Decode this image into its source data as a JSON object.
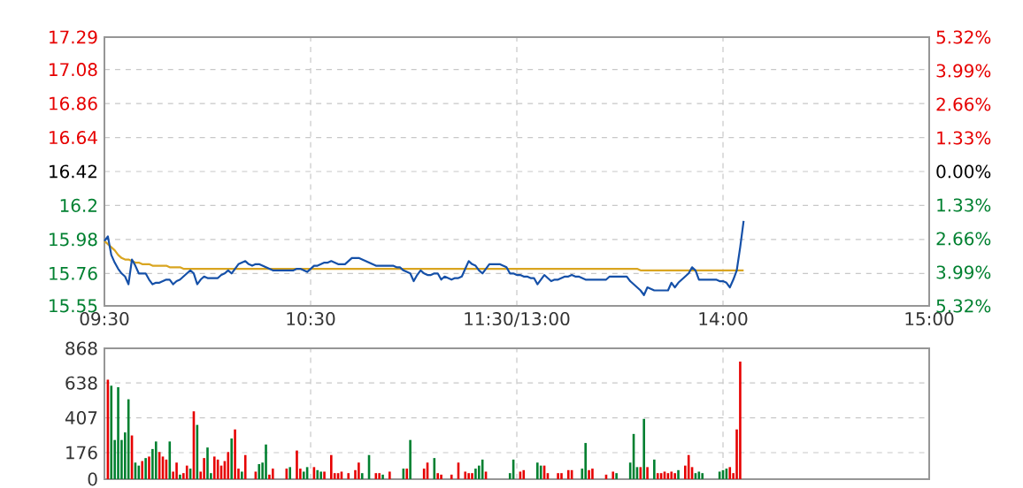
{
  "chart_data": [
    {
      "type": "line",
      "categories": [
        "09:30",
        null,
        null,
        null,
        null,
        null,
        null,
        null,
        null,
        null,
        null,
        null,
        null,
        null,
        null,
        null,
        null,
        null,
        null,
        null,
        null,
        null,
        null,
        null,
        null,
        null,
        null,
        null,
        null,
        null,
        null,
        null,
        null,
        null,
        null,
        null,
        null,
        null,
        null,
        null,
        null,
        null,
        null,
        null,
        null,
        null,
        null,
        null,
        null,
        null,
        null,
        null,
        null,
        null,
        null,
        null,
        null,
        null,
        null,
        null,
        "10:30",
        null,
        null,
        null,
        null,
        null,
        null,
        null,
        null,
        null,
        null,
        null,
        null,
        null,
        null,
        null,
        null,
        null,
        null,
        null,
        null,
        null,
        null,
        null,
        null,
        null,
        null,
        null,
        null,
        null,
        null,
        null,
        null,
        null,
        null,
        null,
        null,
        null,
        null,
        null,
        null,
        null,
        null,
        null,
        null,
        null,
        null,
        null,
        null,
        null,
        null,
        null,
        null,
        null,
        null,
        null,
        null,
        null,
        null,
        null,
        "11:30/13:00",
        null,
        null,
        null,
        null,
        null,
        null,
        null,
        null,
        null,
        null,
        null,
        null,
        null,
        null,
        null,
        null,
        null,
        null,
        null,
        null,
        null,
        null,
        null,
        null,
        null,
        null,
        null,
        null,
        null,
        null,
        null,
        null,
        null,
        null,
        null,
        null,
        null,
        null,
        null,
        null,
        null,
        null,
        null,
        null,
        null,
        null,
        null,
        null,
        null,
        null,
        null,
        null,
        null,
        null,
        null,
        null,
        null,
        null,
        null,
        "14:00",
        null,
        null,
        null,
        null,
        null,
        null,
        null,
        null,
        null,
        null,
        null,
        null,
        null,
        null,
        null,
        null,
        null,
        null,
        null,
        null,
        null,
        null,
        null,
        null,
        null,
        null,
        null,
        null,
        null,
        null,
        null,
        null,
        null,
        null,
        null,
        null,
        null,
        null,
        null,
        null,
        null,
        null,
        null,
        null,
        null,
        null,
        null,
        null,
        null,
        null,
        null,
        null,
        null,
        null,
        null,
        null,
        null,
        null,
        null,
        "15:00"
      ],
      "ylim": [
        15.55,
        17.29
      ],
      "yticks": [
        15.55,
        15.76,
        15.98,
        16.2,
        16.42,
        16.64,
        16.86,
        17.08,
        17.29
      ],
      "y2lim": [
        -5.32,
        5.32
      ],
      "y2ticks": [
        {
          "value": -5.32,
          "label": "5.32%"
        },
        {
          "value": -3.99,
          "label": "3.99%"
        },
        {
          "value": -2.66,
          "label": "2.66%"
        },
        {
          "value": -1.33,
          "label": "1.33%"
        },
        {
          "value": 0,
          "label": "0.00%"
        },
        {
          "value": 1.33,
          "label": "1.33%"
        },
        {
          "value": 2.66,
          "label": "2.66%"
        },
        {
          "value": 3.99,
          "label": "3.99%"
        },
        {
          "value": 5.32,
          "label": "5.32%"
        }
      ],
      "grid": true,
      "series": [
        {
          "color": "#d9a520",
          "values": [
            15.97,
            15.95,
            15.93,
            15.91,
            15.88,
            15.86,
            15.85,
            15.85,
            15.84,
            15.83,
            15.83,
            15.82,
            15.82,
            15.82,
            15.81,
            15.81,
            15.81,
            15.81,
            15.81,
            15.8,
            15.8,
            15.8,
            15.8,
            15.79,
            15.79,
            15.79,
            15.79,
            15.79,
            15.79,
            15.79,
            15.79,
            15.79,
            15.79,
            15.79,
            15.79,
            15.79,
            15.79,
            15.79,
            15.79,
            15.79,
            15.79,
            15.79,
            15.79,
            15.79,
            15.79,
            15.79,
            15.79,
            15.79,
            15.79,
            15.79,
            15.79,
            15.79,
            15.79,
            15.79,
            15.79,
            15.79,
            15.79,
            15.79,
            15.79,
            15.79,
            15.79,
            15.79,
            15.79,
            15.79,
            15.79,
            15.79,
            15.79,
            15.79,
            15.79,
            15.79,
            15.79,
            15.79,
            15.79,
            15.79,
            15.79,
            15.79,
            15.79,
            15.79,
            15.79,
            15.79,
            15.79,
            15.79,
            15.79,
            15.79,
            15.79,
            15.79,
            15.79,
            15.79,
            15.79,
            15.79,
            15.79,
            15.79,
            15.79,
            15.79,
            15.79,
            15.79,
            15.79,
            15.79,
            15.79,
            15.79,
            15.79,
            15.79,
            15.79,
            15.79,
            15.79,
            15.79,
            15.79,
            15.79,
            15.79,
            15.79,
            15.79,
            15.79,
            15.79,
            15.79,
            15.79,
            15.79,
            15.79,
            15.79,
            15.79,
            15.79,
            15.79,
            15.79,
            15.79,
            15.79,
            15.79,
            15.79,
            15.79,
            15.79,
            15.79,
            15.79,
            15.79,
            15.79,
            15.79,
            15.79,
            15.79,
            15.79,
            15.79,
            15.79,
            15.79,
            15.79,
            15.79,
            15.79,
            15.79,
            15.79,
            15.79,
            15.79,
            15.79,
            15.79,
            15.79,
            15.79,
            15.79,
            15.79,
            15.79,
            15.79,
            15.79,
            15.79,
            15.78,
            15.78,
            15.78,
            15.78,
            15.78,
            15.78,
            15.78,
            15.78,
            15.78,
            15.78,
            15.78,
            15.78,
            15.78,
            15.78,
            15.78,
            15.78,
            15.78,
            15.78,
            15.78,
            15.78,
            15.78,
            15.78,
            15.78,
            15.78,
            15.78,
            15.78,
            15.78,
            15.78,
            15.78,
            15.78,
            15.78,
            null,
            null,
            null,
            null,
            null,
            null,
            null,
            null,
            null,
            null,
            null,
            null,
            null,
            null,
            null,
            null,
            null,
            null,
            null,
            null,
            null,
            null,
            null,
            null,
            null,
            null,
            null,
            null,
            null,
            null,
            null,
            null,
            null,
            null,
            null,
            null,
            null,
            null,
            null,
            null,
            null,
            null,
            null,
            null,
            null,
            null,
            null,
            null,
            null,
            null,
            null,
            null,
            null,
            null
          ]
        },
        {
          "color": "#1550a8",
          "values": [
            15.97,
            16.0,
            15.88,
            15.83,
            15.79,
            15.76,
            15.74,
            15.69,
            15.85,
            15.81,
            15.76,
            15.76,
            15.76,
            15.72,
            15.69,
            15.7,
            15.7,
            15.71,
            15.72,
            15.72,
            15.69,
            15.71,
            15.72,
            15.74,
            15.76,
            15.78,
            15.76,
            15.69,
            15.72,
            15.74,
            15.73,
            15.73,
            15.73,
            15.73,
            15.75,
            15.76,
            15.78,
            15.76,
            15.79,
            15.82,
            15.83,
            15.84,
            15.82,
            15.81,
            15.82,
            15.82,
            15.81,
            15.8,
            15.79,
            15.78,
            15.78,
            15.78,
            15.78,
            15.78,
            15.78,
            15.78,
            15.79,
            15.79,
            15.78,
            15.77,
            15.79,
            15.81,
            15.81,
            15.82,
            15.83,
            15.83,
            15.84,
            15.83,
            15.82,
            15.82,
            15.82,
            15.84,
            15.86,
            15.86,
            15.86,
            15.85,
            15.84,
            15.83,
            15.82,
            15.81,
            15.81,
            15.81,
            15.81,
            15.81,
            15.81,
            15.8,
            15.8,
            15.78,
            15.77,
            15.76,
            15.71,
            15.75,
            15.78,
            15.76,
            15.75,
            15.75,
            15.76,
            15.76,
            15.72,
            15.74,
            15.73,
            15.72,
            15.73,
            15.73,
            15.74,
            15.79,
            15.84,
            15.82,
            15.81,
            15.78,
            15.76,
            15.79,
            15.82,
            15.82,
            15.82,
            15.82,
            15.81,
            15.8,
            15.76,
            15.76,
            15.75,
            15.75,
            15.74,
            15.74,
            15.73,
            15.73,
            15.69,
            15.72,
            15.75,
            15.73,
            15.71,
            15.72,
            15.72,
            15.73,
            15.74,
            15.74,
            15.75,
            15.74,
            15.74,
            15.73,
            15.72,
            15.72,
            15.72,
            15.72,
            15.72,
            15.72,
            15.72,
            15.74,
            15.74,
            15.74,
            15.74,
            15.74,
            15.74,
            15.71,
            15.69,
            15.67,
            15.65,
            15.62,
            15.67,
            15.66,
            15.65,
            15.65,
            15.65,
            15.65,
            15.65,
            15.7,
            15.67,
            15.7,
            15.72,
            15.74,
            15.76,
            15.8,
            15.78,
            15.72,
            15.72,
            15.72,
            15.72,
            15.72,
            15.72,
            15.71,
            15.71,
            15.7,
            15.67,
            15.72,
            15.78,
            15.93,
            16.1,
            null,
            null,
            null,
            null,
            null,
            null,
            null,
            null,
            null,
            null,
            null,
            null,
            null,
            null,
            null,
            null,
            null,
            null,
            null,
            null,
            null,
            null,
            null,
            null,
            null,
            null,
            null,
            null,
            null,
            null,
            null,
            null,
            null,
            null,
            null,
            null,
            null,
            null,
            null,
            null,
            null,
            null,
            null,
            null,
            null,
            null,
            null,
            null,
            null,
            null,
            null,
            null,
            null,
            null
          ]
        }
      ]
    },
    {
      "type": "bar",
      "categories": [
        null,
        null,
        null,
        null,
        null,
        null,
        null,
        null,
        null,
        null,
        null,
        null,
        null,
        null,
        null,
        null,
        null,
        null,
        null,
        null,
        null,
        null,
        null,
        null,
        null,
        null,
        null,
        null,
        null,
        null,
        null,
        null,
        null,
        null,
        null,
        null,
        null,
        null,
        null,
        null,
        null,
        null,
        null,
        null,
        null,
        null,
        null,
        null,
        null,
        null,
        null,
        null,
        null,
        null,
        null,
        null,
        null,
        null,
        null,
        null,
        null,
        null,
        null,
        null,
        null,
        null,
        null,
        null,
        null,
        null,
        null,
        null,
        null,
        null,
        null,
        null,
        null,
        null,
        null,
        null,
        null,
        null,
        null,
        null,
        null,
        null,
        null,
        null,
        null,
        null,
        null,
        null,
        null,
        null,
        null,
        null,
        null,
        null,
        null,
        null,
        null,
        null,
        null,
        null,
        null,
        null,
        null,
        null,
        null,
        null,
        null,
        null,
        null,
        null,
        null,
        null,
        null,
        null,
        null,
        null,
        null,
        null,
        null,
        null,
        null,
        null,
        null,
        null,
        null,
        null,
        null,
        null,
        null,
        null,
        null,
        null,
        null,
        null,
        null,
        null,
        null,
        null,
        null,
        null,
        null,
        null,
        null,
        null,
        null,
        null,
        null,
        null,
        null,
        null,
        null,
        null,
        null,
        null,
        null,
        null,
        null,
        null,
        null,
        null,
        null,
        null,
        null,
        null,
        null,
        null,
        null,
        null,
        null,
        null,
        null,
        null,
        null,
        null,
        null,
        null,
        null,
        null,
        null,
        null,
        null,
        null,
        null,
        null,
        null,
        null,
        null,
        null,
        null,
        null,
        null,
        null,
        null,
        null,
        null,
        null,
        null,
        null,
        null,
        null,
        null,
        null,
        null,
        null,
        null,
        null,
        null,
        null,
        null,
        null,
        null,
        null,
        null,
        null,
        null,
        null,
        null,
        null,
        null,
        null,
        null,
        null,
        null,
        null,
        null,
        null,
        null,
        null,
        null,
        null,
        null,
        null,
        null,
        null,
        null,
        null,
        null
      ],
      "ylim": [
        0,
        868
      ],
      "yticks": [
        0,
        176,
        407,
        638,
        868
      ],
      "grid": true,
      "tick_labels": "y",
      "series": [
        {
          "color": "#e60000",
          "values": [
            null,
            660,
            null,
            null,
            null,
            null,
            null,
            null,
            290,
            null,
            null,
            120,
            null,
            150,
            null,
            null,
            180,
            150,
            130,
            null,
            50,
            110,
            null,
            40,
            90,
            null,
            450,
            null,
            50,
            140,
            null,
            null,
            150,
            130,
            90,
            120,
            180,
            null,
            330,
            70,
            null,
            160,
            null,
            null,
            50,
            null,
            null,
            null,
            30,
            70,
            null,
            null,
            null,
            70,
            null,
            null,
            190,
            70,
            null,
            null,
            null,
            80,
            null,
            null,
            50,
            null,
            160,
            40,
            40,
            50,
            null,
            40,
            null,
            60,
            110,
            null,
            null,
            null,
            null,
            40,
            40,
            null,
            null,
            50,
            null,
            null,
            null,
            null,
            70,
            null,
            null,
            null,
            null,
            70,
            110,
            null,
            null,
            40,
            30,
            null,
            null,
            30,
            null,
            110,
            null,
            50,
            40,
            40,
            null,
            null,
            null,
            50,
            null,
            null,
            null,
            null,
            null,
            null,
            null,
            null,
            null,
            50,
            60,
            null,
            null,
            null,
            null,
            null,
            90,
            40,
            null,
            null,
            40,
            40,
            null,
            60,
            60,
            null,
            null,
            null,
            null,
            60,
            70,
            null,
            null,
            null,
            30,
            null,
            50,
            null,
            null,
            null,
            null,
            null,
            null,
            null,
            80,
            null,
            80,
            null,
            null,
            40,
            40,
            50,
            40,
            50,
            40,
            null,
            null,
            90,
            160,
            80,
            null,
            null,
            null,
            null,
            null,
            null,
            null,
            null,
            null,
            null,
            80,
            40,
            330,
            780,
            null,
            null,
            null,
            null,
            null,
            null,
            null,
            null,
            null,
            null,
            null,
            null,
            null,
            null,
            null,
            null,
            null,
            null,
            null,
            null,
            null,
            null,
            null,
            null,
            null,
            null,
            null,
            null,
            null,
            null,
            null,
            null,
            null,
            null,
            null,
            null,
            null,
            null,
            null,
            null,
            null,
            null,
            null,
            null,
            null,
            null,
            null,
            null,
            null,
            null,
            null,
            null,
            null,
            null,
            null
          ]
        },
        {
          "color": "#008030",
          "values": [
            null,
            null,
            620,
            260,
            610,
            260,
            310,
            530,
            null,
            110,
            90,
            null,
            140,
            null,
            200,
            250,
            null,
            null,
            null,
            250,
            null,
            null,
            30,
            null,
            null,
            70,
            null,
            360,
            null,
            null,
            210,
            40,
            null,
            null,
            null,
            null,
            null,
            270,
            null,
            null,
            50,
            null,
            null,
            null,
            null,
            100,
            110,
            230,
            null,
            null,
            null,
            null,
            null,
            null,
            80,
            null,
            null,
            null,
            50,
            80,
            null,
            null,
            60,
            50,
            null,
            null,
            null,
            null,
            null,
            null,
            null,
            null,
            null,
            null,
            null,
            40,
            null,
            160,
            null,
            null,
            null,
            30,
            null,
            null,
            null,
            null,
            null,
            70,
            null,
            260,
            null,
            null,
            null,
            null,
            null,
            null,
            140,
            null,
            null,
            null,
            null,
            null,
            null,
            null,
            null,
            null,
            null,
            null,
            70,
            90,
            130,
            null,
            null,
            null,
            null,
            null,
            null,
            null,
            40,
            130,
            null,
            null,
            null,
            null,
            null,
            null,
            110,
            90,
            null,
            null,
            null,
            null,
            null,
            null,
            null,
            null,
            null,
            null,
            null,
            70,
            240,
            null,
            null,
            null,
            null,
            null,
            null,
            null,
            null,
            40,
            null,
            null,
            null,
            110,
            300,
            80,
            null,
            400,
            null,
            null,
            130,
            null,
            null,
            null,
            null,
            null,
            null,
            60,
            null,
            null,
            null,
            null,
            40,
            50,
            40,
            null,
            null,
            null,
            null,
            50,
            60,
            70,
            null,
            null,
            null,
            null,
            null,
            null,
            null,
            null,
            null,
            null,
            null,
            null,
            null,
            null,
            null,
            null,
            null,
            null,
            null,
            null,
            null,
            null,
            null,
            null,
            null,
            null,
            null,
            null,
            null,
            null,
            null,
            null,
            null,
            null,
            null,
            null,
            null,
            null,
            null,
            null,
            null,
            null,
            null,
            null,
            null,
            null,
            null,
            null,
            null,
            null,
            null,
            null,
            null,
            null,
            null,
            null,
            null,
            null,
            null
          ]
        }
      ]
    }
  ]
}
